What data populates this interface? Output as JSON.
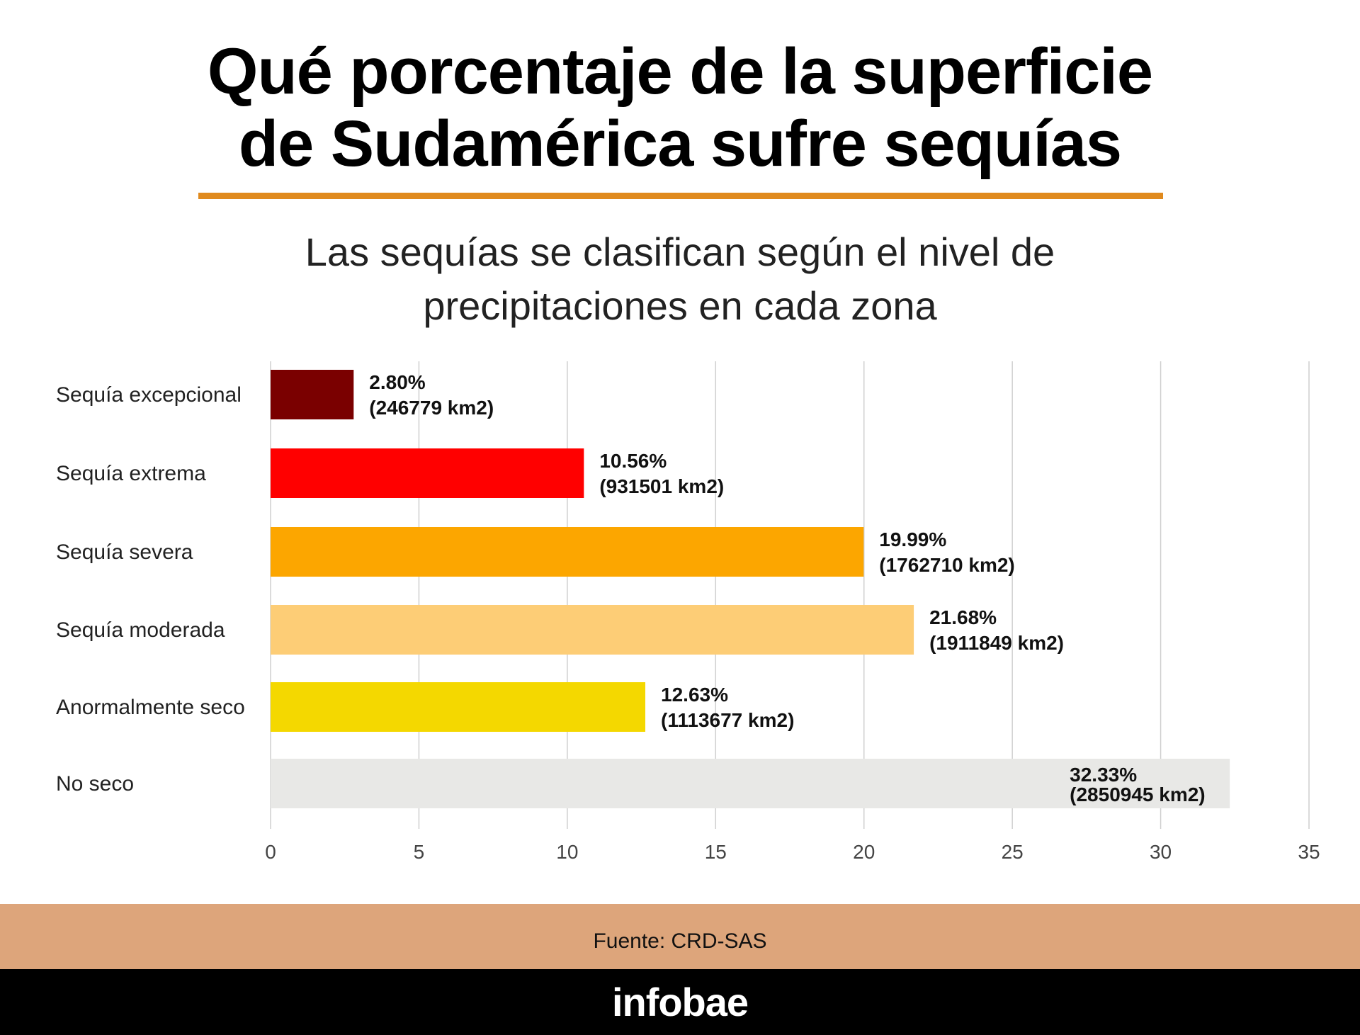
{
  "header": {
    "title_line1": "Qué porcentaje de la superficie",
    "title_line2": "de Sudamérica sufre sequías",
    "subtitle_line1": "Las sequías se clasifican según el nivel de",
    "subtitle_line2": "precipitaciones en cada zona"
  },
  "footer": {
    "source": "Fuente: CRD-SAS",
    "brand": "infobae"
  },
  "colors": {
    "accent_rule": "#e08a1e",
    "source_band": "#dda57b",
    "brand_band": "#000000"
  },
  "chart_data": {
    "type": "bar",
    "orientation": "horizontal",
    "title": "Qué porcentaje de la superficie de Sudamérica sufre sequías",
    "xlabel": "",
    "ylabel": "",
    "xlim": [
      0,
      35
    ],
    "xticks": [
      0,
      5,
      10,
      15,
      20,
      25,
      30,
      35
    ],
    "grid": true,
    "unit": "%",
    "categories": [
      "Sequía excepcional",
      "Sequía extrema",
      "Sequía severa",
      "Sequía moderada",
      "Anormalmente seco",
      "No seco"
    ],
    "values": [
      2.8,
      10.56,
      19.99,
      21.68,
      12.63,
      32.33
    ],
    "labels_pct": [
      "2.80%",
      "10.56%",
      "19.99%",
      "21.68%",
      "12.63%",
      "32.33%"
    ],
    "labels_area": [
      "(246779 km2)",
      "(931501 km2)",
      "(1762710 km2)",
      "(1911849 km2)",
      "(1113677 km2)",
      "(2850945 km2)"
    ],
    "colors": [
      "#7a0000",
      "#ff0000",
      "#fca600",
      "#fdcd76",
      "#f4d800",
      "#e8e8e6"
    ]
  }
}
